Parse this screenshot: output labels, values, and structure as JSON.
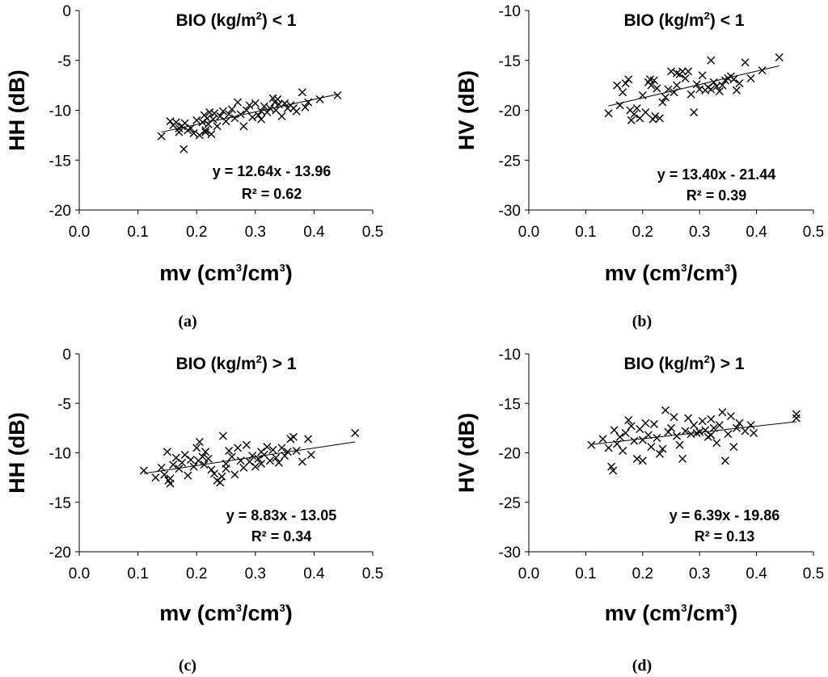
{
  "figure": {
    "captions": [
      "(a)",
      "(b)",
      "(c)",
      "(d)"
    ]
  },
  "colors": {
    "marker": "#000000",
    "trendline": "#000000",
    "axis": "#000000",
    "background": "#ffffff"
  },
  "chart_data": [
    {
      "type": "scatter",
      "panel": "a",
      "title_main": "BIO",
      "title_unit_pre": "(kg/m",
      "title_unit_sup": "2",
      "title_unit_post": ")",
      "title_cond": "< 1",
      "ylabel": "HH (dB)",
      "xlabel_pre": "mv (cm",
      "xlabel_sup1": "3",
      "xlabel_mid": "/cm",
      "xlabel_sup2": "3",
      "xlabel_post": ")",
      "xlim": [
        0,
        0.5
      ],
      "ylim": [
        -20,
        0
      ],
      "xticks": [
        0.0,
        0.1,
        0.2,
        0.3,
        0.4,
        0.5
      ],
      "xtick_labels": [
        "0.0",
        "0.1",
        "0.2",
        "0.3",
        "0.4",
        "0.5"
      ],
      "yticks": [
        0,
        -5,
        -10,
        -15,
        -20
      ],
      "ytick_labels": [
        "0",
        "-5",
        "-10",
        "-15",
        "-20"
      ],
      "trendline": {
        "slope": 12.64,
        "intercept": -13.96,
        "x_range": [
          0.14,
          0.44
        ]
      },
      "equation": "y = 12.64x - 13.96",
      "r2": "R² = 0.62",
      "points": [
        [
          0.14,
          -12.6
        ],
        [
          0.155,
          -11.1
        ],
        [
          0.16,
          -11.5
        ],
        [
          0.165,
          -11.2
        ],
        [
          0.17,
          -12.2
        ],
        [
          0.175,
          -11.6
        ],
        [
          0.178,
          -13.9
        ],
        [
          0.18,
          -11.3
        ],
        [
          0.185,
          -12.0
        ],
        [
          0.19,
          -11.8
        ],
        [
          0.195,
          -12.3
        ],
        [
          0.2,
          -11.0
        ],
        [
          0.205,
          -12.5
        ],
        [
          0.21,
          -11.2
        ],
        [
          0.213,
          -10.5
        ],
        [
          0.215,
          -12.0
        ],
        [
          0.218,
          -10.8
        ],
        [
          0.22,
          -11.4
        ],
        [
          0.222,
          -10.2
        ],
        [
          0.225,
          -12.4
        ],
        [
          0.228,
          -10.9
        ],
        [
          0.23,
          -10.3
        ],
        [
          0.235,
          -11.6
        ],
        [
          0.24,
          -10.6
        ],
        [
          0.245,
          -10.1
        ],
        [
          0.25,
          -11.1
        ],
        [
          0.255,
          -10.4
        ],
        [
          0.26,
          -9.9
        ],
        [
          0.265,
          -10.8
        ],
        [
          0.27,
          -9.2
        ],
        [
          0.275,
          -10.4
        ],
        [
          0.28,
          -11.6
        ],
        [
          0.285,
          -10.0
        ],
        [
          0.29,
          -9.5
        ],
        [
          0.295,
          -10.7
        ],
        [
          0.3,
          -9.3
        ],
        [
          0.305,
          -10.5
        ],
        [
          0.31,
          -10.1
        ],
        [
          0.315,
          -9.6
        ],
        [
          0.32,
          -10.2
        ],
        [
          0.325,
          -9.8
        ],
        [
          0.33,
          -8.8
        ],
        [
          0.333,
          -9.2
        ],
        [
          0.335,
          -10.0
        ],
        [
          0.338,
          -8.9
        ],
        [
          0.34,
          -9.4
        ],
        [
          0.345,
          -10.6
        ],
        [
          0.35,
          -9.3
        ],
        [
          0.355,
          -9.8
        ],
        [
          0.36,
          -9.5
        ],
        [
          0.365,
          -9.8
        ],
        [
          0.37,
          -10.1
        ],
        [
          0.38,
          -8.2
        ],
        [
          0.385,
          -9.7
        ],
        [
          0.39,
          -9.2
        ],
        [
          0.41,
          -8.9
        ],
        [
          0.44,
          -8.5
        ],
        [
          0.17,
          -11.8
        ],
        [
          0.31,
          -10.9
        ],
        [
          0.215,
          -12.2
        ]
      ]
    },
    {
      "type": "scatter",
      "panel": "b",
      "title_main": "BIO",
      "title_unit_pre": "(kg/m",
      "title_unit_sup": "2",
      "title_unit_post": ")",
      "title_cond": "< 1",
      "ylabel": "HV (dB)",
      "xlabel_pre": "mv (cm",
      "xlabel_sup1": "3",
      "xlabel_mid": "/cm",
      "xlabel_sup2": "3",
      "xlabel_post": ")",
      "xlim": [
        0,
        0.5
      ],
      "ylim": [
        -30,
        -10
      ],
      "xticks": [
        0.0,
        0.1,
        0.2,
        0.3,
        0.4,
        0.5
      ],
      "xtick_labels": [
        "0.0",
        "0.1",
        "0.2",
        "0.3",
        "0.4",
        "0.5"
      ],
      "yticks": [
        -10,
        -15,
        -20,
        -25,
        -30
      ],
      "ytick_labels": [
        "-10",
        "-15",
        "-20",
        "-25",
        "-30"
      ],
      "trendline": {
        "slope": 13.4,
        "intercept": -21.44,
        "x_range": [
          0.14,
          0.44
        ]
      },
      "equation": "y = 13.40x - 21.44",
      "r2": "R² = 0.39",
      "points": [
        [
          0.14,
          -20.3
        ],
        [
          0.155,
          -17.5
        ],
        [
          0.16,
          -19.5
        ],
        [
          0.165,
          -18.2
        ],
        [
          0.17,
          -17.3
        ],
        [
          0.175,
          -16.9
        ],
        [
          0.178,
          -20.0
        ],
        [
          0.18,
          -21.0
        ],
        [
          0.185,
          -20.4
        ],
        [
          0.19,
          -19.8
        ],
        [
          0.195,
          -20.8
        ],
        [
          0.2,
          -18.5
        ],
        [
          0.205,
          -20.2
        ],
        [
          0.21,
          -17.2
        ],
        [
          0.213,
          -16.9
        ],
        [
          0.215,
          -17.5
        ],
        [
          0.218,
          -20.9
        ],
        [
          0.22,
          -17.0
        ],
        [
          0.222,
          -20.6
        ],
        [
          0.225,
          -17.8
        ],
        [
          0.23,
          -20.8
        ],
        [
          0.235,
          -19.2
        ],
        [
          0.24,
          -18.7
        ],
        [
          0.245,
          -17.9
        ],
        [
          0.25,
          -16.1
        ],
        [
          0.255,
          -18.2
        ],
        [
          0.26,
          -17.5
        ],
        [
          0.265,
          -16.4
        ],
        [
          0.27,
          -16.1
        ],
        [
          0.275,
          -16.8
        ],
        [
          0.28,
          -16.1
        ],
        [
          0.285,
          -18.4
        ],
        [
          0.29,
          -20.2
        ],
        [
          0.295,
          -17.4
        ],
        [
          0.3,
          -17.9
        ],
        [
          0.305,
          -16.5
        ],
        [
          0.31,
          -18.0
        ],
        [
          0.315,
          -17.7
        ],
        [
          0.32,
          -15.0
        ],
        [
          0.325,
          -17.2
        ],
        [
          0.33,
          -17.6
        ],
        [
          0.335,
          -18.1
        ],
        [
          0.34,
          -17.5
        ],
        [
          0.345,
          -17.0
        ],
        [
          0.35,
          -16.8
        ],
        [
          0.355,
          -16.6
        ],
        [
          0.36,
          -16.9
        ],
        [
          0.365,
          -18.0
        ],
        [
          0.37,
          -17.3
        ],
        [
          0.38,
          -15.2
        ],
        [
          0.39,
          -16.8
        ],
        [
          0.41,
          -16.0
        ],
        [
          0.44,
          -14.7
        ],
        [
          0.26,
          -16.3
        ],
        [
          0.32,
          -17.9
        ]
      ]
    },
    {
      "type": "scatter",
      "panel": "c",
      "title_main": "BIO",
      "title_unit_pre": "(kg/m",
      "title_unit_sup": "2",
      "title_unit_post": ")",
      "title_cond": "> 1",
      "ylabel": "HH (dB)",
      "xlabel_pre": "mv (cm",
      "xlabel_sup1": "3",
      "xlabel_mid": "/cm",
      "xlabel_sup2": "3",
      "xlabel_post": ")",
      "xlim": [
        0,
        0.5
      ],
      "ylim": [
        -20,
        0
      ],
      "xticks": [
        0.0,
        0.1,
        0.2,
        0.3,
        0.4,
        0.5
      ],
      "xtick_labels": [
        "0.0",
        "0.1",
        "0.2",
        "0.3",
        "0.4",
        "0.5"
      ],
      "yticks": [
        0,
        -5,
        -10,
        -15,
        -20
      ],
      "ytick_labels": [
        "0",
        "-5",
        "-10",
        "-15",
        "-20"
      ],
      "trendline": {
        "slope": 8.83,
        "intercept": -13.05,
        "x_range": [
          0.11,
          0.47
        ]
      },
      "equation": "y = 8.83x - 13.05",
      "r2": "R² = 0.34",
      "points": [
        [
          0.11,
          -11.8
        ],
        [
          0.13,
          -12.5
        ],
        [
          0.14,
          -11.5
        ],
        [
          0.145,
          -12.2
        ],
        [
          0.15,
          -9.9
        ],
        [
          0.152,
          -12.8
        ],
        [
          0.155,
          -13.1
        ],
        [
          0.16,
          -11.2
        ],
        [
          0.165,
          -10.5
        ],
        [
          0.17,
          -11.6
        ],
        [
          0.175,
          -11.0
        ],
        [
          0.18,
          -10.2
        ],
        [
          0.185,
          -12.3
        ],
        [
          0.19,
          -10.7
        ],
        [
          0.195,
          -11.4
        ],
        [
          0.2,
          -9.5
        ],
        [
          0.203,
          -10.8
        ],
        [
          0.205,
          -8.9
        ],
        [
          0.21,
          -10.4
        ],
        [
          0.213,
          -11.2
        ],
        [
          0.215,
          -9.9
        ],
        [
          0.22,
          -10.6
        ],
        [
          0.225,
          -11.7
        ],
        [
          0.23,
          -12.1
        ],
        [
          0.235,
          -12.8
        ],
        [
          0.24,
          -13.0
        ],
        [
          0.243,
          -12.4
        ],
        [
          0.245,
          -8.3
        ],
        [
          0.25,
          -11.1
        ],
        [
          0.255,
          -9.8
        ],
        [
          0.26,
          -10.4
        ],
        [
          0.265,
          -12.2
        ],
        [
          0.27,
          -9.5
        ],
        [
          0.275,
          -10.8
        ],
        [
          0.28,
          -11.5
        ],
        [
          0.285,
          -9.2
        ],
        [
          0.29,
          -10.9
        ],
        [
          0.295,
          -10.3
        ],
        [
          0.3,
          -11.4
        ],
        [
          0.305,
          -10.6
        ],
        [
          0.31,
          -9.9
        ],
        [
          0.315,
          -10.2
        ],
        [
          0.32,
          -9.4
        ],
        [
          0.325,
          -10.8
        ],
        [
          0.33,
          -9.7
        ],
        [
          0.335,
          -10.5
        ],
        [
          0.34,
          -11.0
        ],
        [
          0.345,
          -9.5
        ],
        [
          0.35,
          -10.3
        ],
        [
          0.355,
          -9.9
        ],
        [
          0.36,
          -8.6
        ],
        [
          0.365,
          -8.4
        ],
        [
          0.37,
          -9.8
        ],
        [
          0.38,
          -10.9
        ],
        [
          0.39,
          -8.6
        ],
        [
          0.395,
          -10.2
        ],
        [
          0.47,
          -8.0
        ],
        [
          0.155,
          -12.6
        ],
        [
          0.25,
          -11.6
        ],
        [
          0.31,
          -11.1
        ]
      ]
    },
    {
      "type": "scatter",
      "panel": "d",
      "title_main": "BIO",
      "title_unit_pre": "(kg/m",
      "title_unit_sup": "2",
      "title_unit_post": ")",
      "title_cond": "> 1",
      "ylabel": "HV (dB)",
      "xlabel_pre": "mv (cm",
      "xlabel_sup1": "3",
      "xlabel_mid": "/cm",
      "xlabel_sup2": "3",
      "xlabel_post": ")",
      "xlim": [
        0,
        0.5
      ],
      "ylim": [
        -30,
        -10
      ],
      "xticks": [
        0.0,
        0.1,
        0.2,
        0.3,
        0.4,
        0.5
      ],
      "xtick_labels": [
        "0.0",
        "0.1",
        "0.2",
        "0.3",
        "0.4",
        "0.5"
      ],
      "yticks": [
        -10,
        -15,
        -20,
        -25,
        -30
      ],
      "ytick_labels": [
        "-10",
        "-15",
        "-20",
        "-25",
        "-30"
      ],
      "trendline": {
        "slope": 6.39,
        "intercept": -19.86,
        "x_range": [
          0.11,
          0.47
        ]
      },
      "equation": "y = 6.39x - 19.86",
      "r2": "R² = 0.13",
      "points": [
        [
          0.11,
          -19.2
        ],
        [
          0.13,
          -18.6
        ],
        [
          0.14,
          -19.5
        ],
        [
          0.145,
          -21.4
        ],
        [
          0.148,
          -21.8
        ],
        [
          0.15,
          -17.7
        ],
        [
          0.155,
          -19.1
        ],
        [
          0.16,
          -18.4
        ],
        [
          0.165,
          -19.8
        ],
        [
          0.17,
          -18.0
        ],
        [
          0.175,
          -16.7
        ],
        [
          0.18,
          -17.3
        ],
        [
          0.185,
          -18.8
        ],
        [
          0.19,
          -20.6
        ],
        [
          0.195,
          -17.6
        ],
        [
          0.2,
          -20.8
        ],
        [
          0.205,
          -17.0
        ],
        [
          0.21,
          -18.2
        ],
        [
          0.215,
          -19.4
        ],
        [
          0.22,
          -17.1
        ],
        [
          0.225,
          -18.5
        ],
        [
          0.23,
          -20.1
        ],
        [
          0.235,
          -19.6
        ],
        [
          0.24,
          -15.7
        ],
        [
          0.245,
          -17.9
        ],
        [
          0.25,
          -17.5
        ],
        [
          0.255,
          -16.4
        ],
        [
          0.26,
          -18.3
        ],
        [
          0.265,
          -19.2
        ],
        [
          0.27,
          -20.6
        ],
        [
          0.275,
          -17.8
        ],
        [
          0.28,
          -16.5
        ],
        [
          0.285,
          -18.1
        ],
        [
          0.29,
          -17.2
        ],
        [
          0.295,
          -18.0
        ],
        [
          0.3,
          -17.9
        ],
        [
          0.305,
          -16.8
        ],
        [
          0.31,
          -17.7
        ],
        [
          0.315,
          -18.4
        ],
        [
          0.32,
          -16.6
        ],
        [
          0.325,
          -17.5
        ],
        [
          0.33,
          -19.0
        ],
        [
          0.335,
          -17.2
        ],
        [
          0.34,
          -15.9
        ],
        [
          0.345,
          -20.8
        ],
        [
          0.35,
          -18.1
        ],
        [
          0.355,
          -16.3
        ],
        [
          0.36,
          -19.4
        ],
        [
          0.365,
          -17.5
        ],
        [
          0.37,
          -17.0
        ],
        [
          0.38,
          -17.8
        ],
        [
          0.39,
          -17.2
        ],
        [
          0.395,
          -18.0
        ],
        [
          0.47,
          -16.1
        ],
        [
          0.47,
          -16.5
        ],
        [
          0.2,
          -18.7
        ],
        [
          0.32,
          -18.2
        ]
      ]
    }
  ]
}
